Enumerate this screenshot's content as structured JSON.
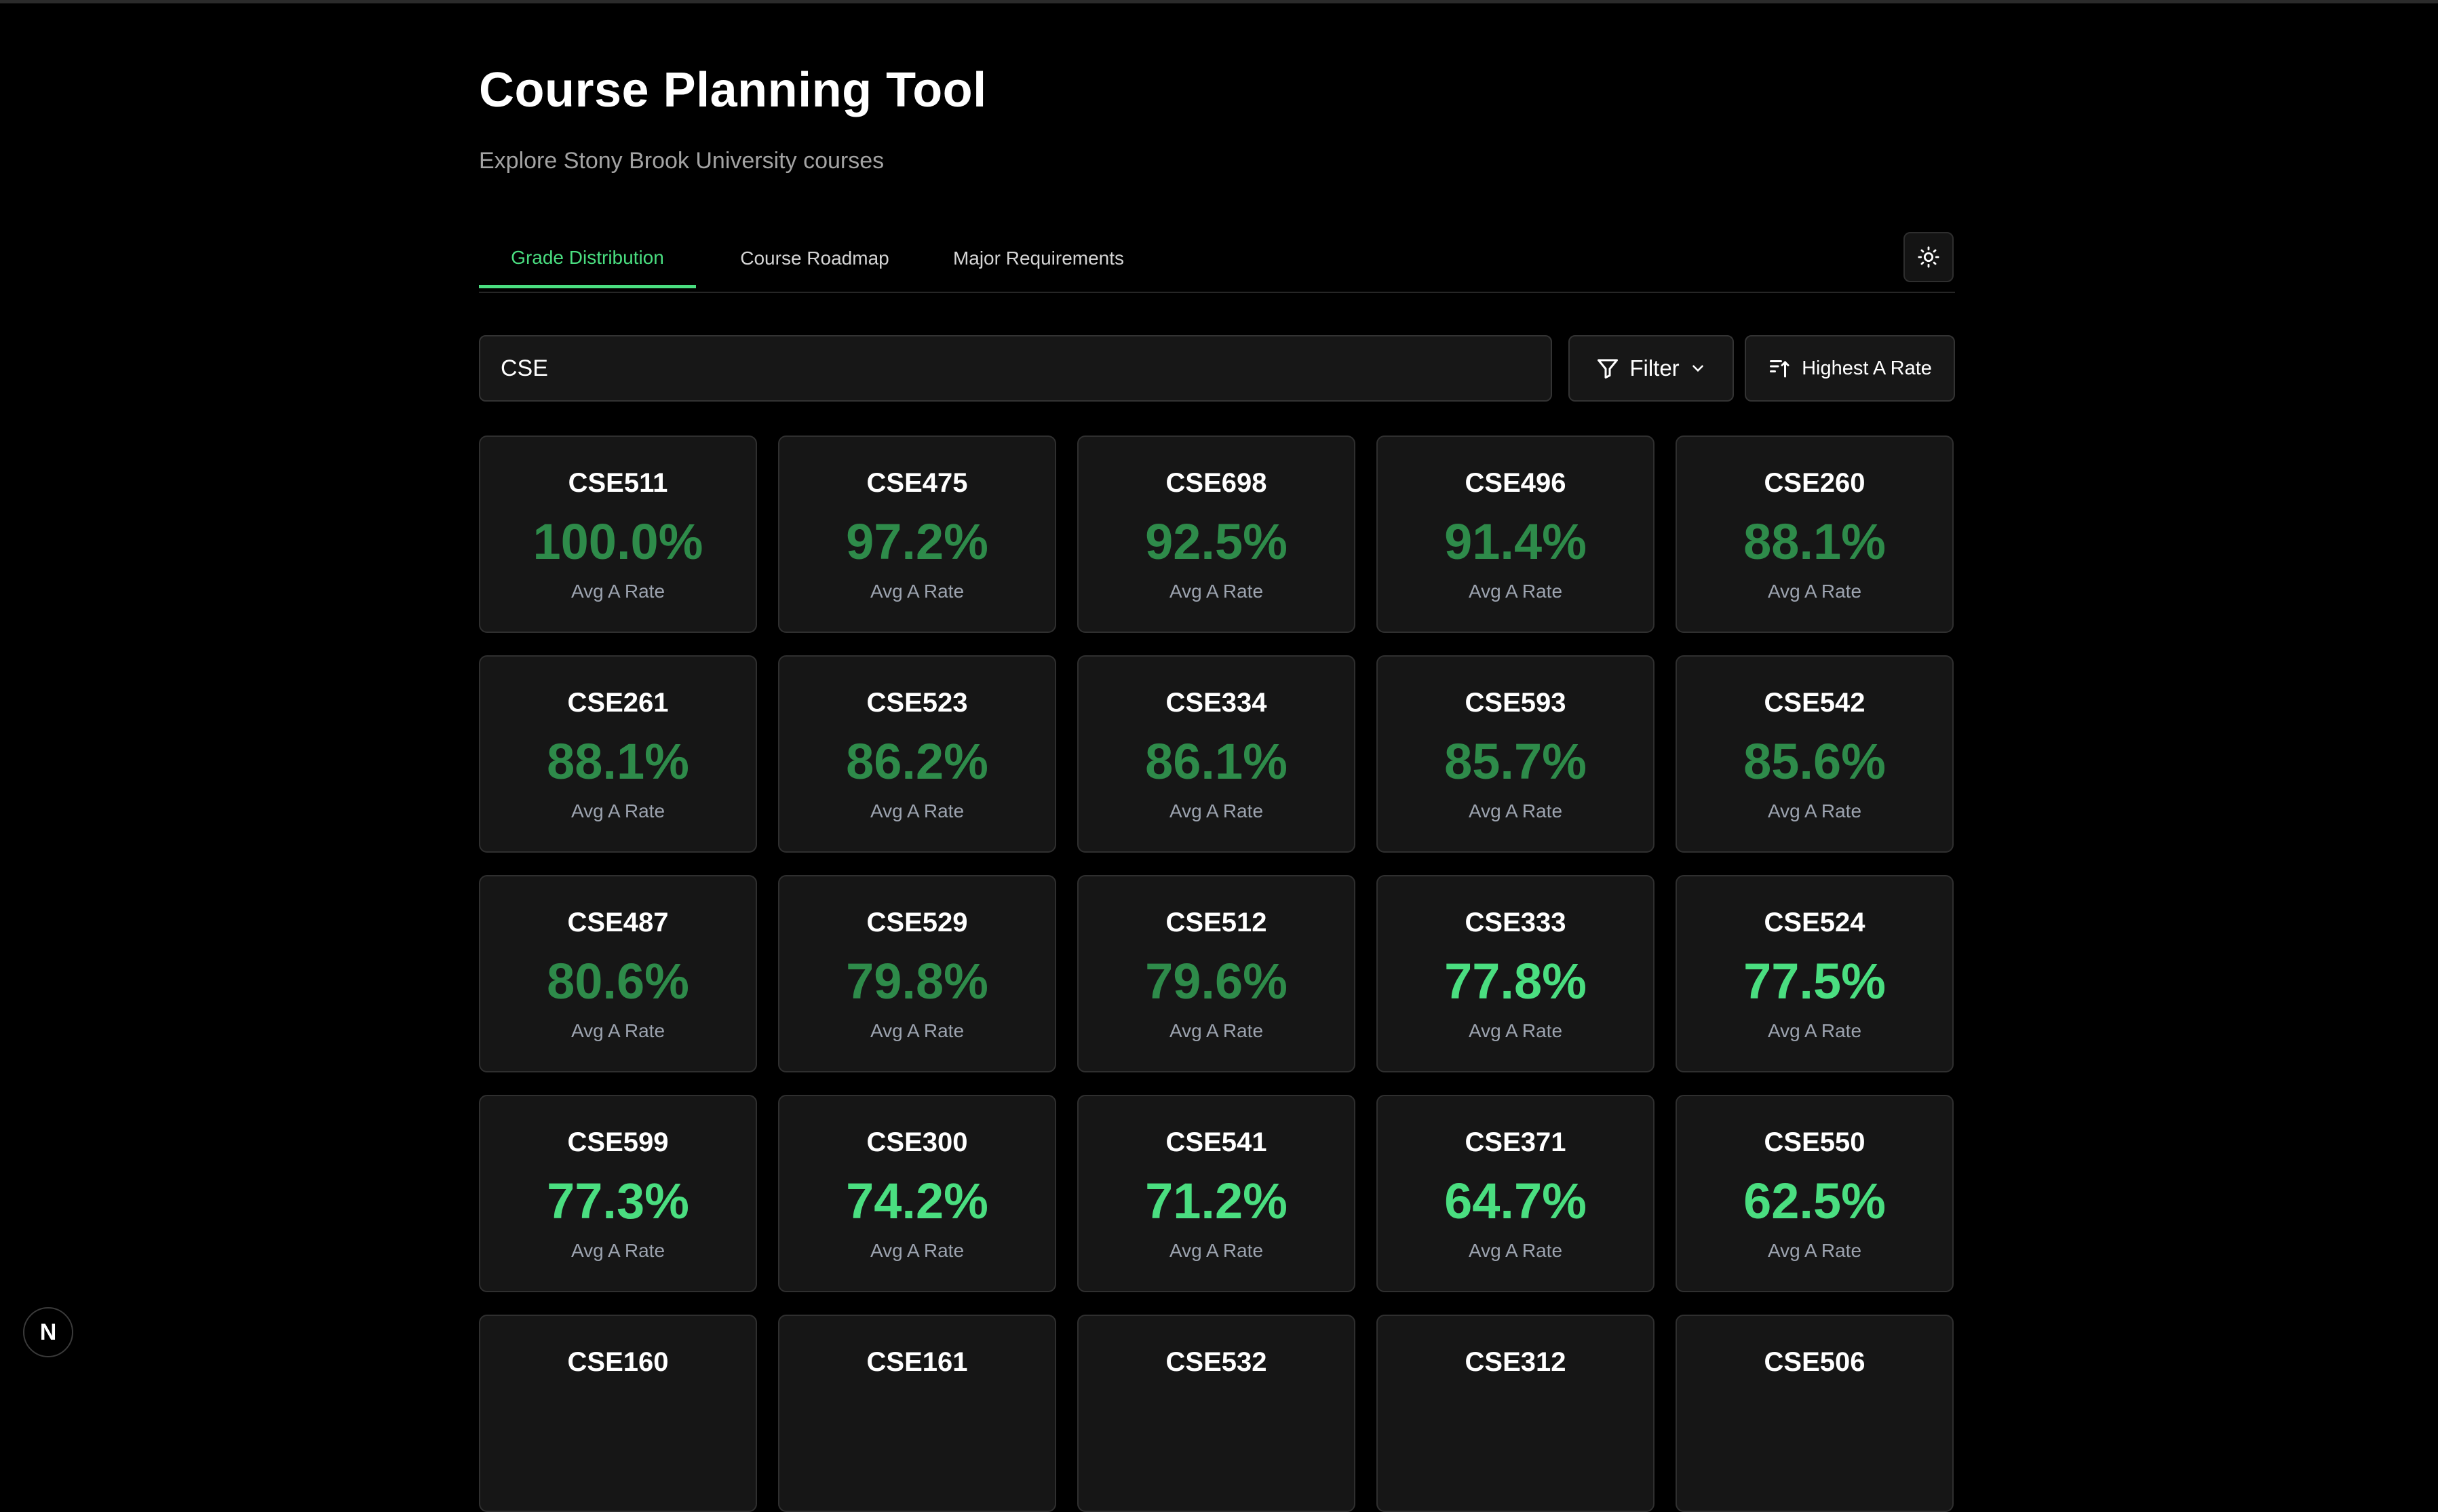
{
  "header": {
    "title": "Course Planning Tool",
    "subtitle": "Explore Stony Brook University courses"
  },
  "tabs": [
    {
      "label": "Grade Distribution",
      "active": true
    },
    {
      "label": "Course Roadmap",
      "active": false
    },
    {
      "label": "Major Requirements",
      "active": false
    }
  ],
  "toolbar": {
    "search_value": "CSE",
    "filter_label": "Filter",
    "sort_label": "Highest A Rate",
    "theme_icon": "sun-icon"
  },
  "colors": {
    "accent": "#4ade80",
    "rate_high": "#2e8b4a",
    "rate_low": "#4ade80"
  },
  "rate_label": "Avg A Rate",
  "courses": [
    {
      "code": "CSE511",
      "rate": "100.0%"
    },
    {
      "code": "CSE475",
      "rate": "97.2%"
    },
    {
      "code": "CSE698",
      "rate": "92.5%"
    },
    {
      "code": "CSE496",
      "rate": "91.4%"
    },
    {
      "code": "CSE260",
      "rate": "88.1%"
    },
    {
      "code": "CSE261",
      "rate": "88.1%"
    },
    {
      "code": "CSE523",
      "rate": "86.2%"
    },
    {
      "code": "CSE334",
      "rate": "86.1%"
    },
    {
      "code": "CSE593",
      "rate": "85.7%"
    },
    {
      "code": "CSE542",
      "rate": "85.6%"
    },
    {
      "code": "CSE487",
      "rate": "80.6%"
    },
    {
      "code": "CSE529",
      "rate": "79.8%"
    },
    {
      "code": "CSE512",
      "rate": "79.6%"
    },
    {
      "code": "CSE333",
      "rate": "77.8%"
    },
    {
      "code": "CSE524",
      "rate": "77.5%"
    },
    {
      "code": "CSE599",
      "rate": "77.3%"
    },
    {
      "code": "CSE300",
      "rate": "74.2%"
    },
    {
      "code": "CSE541",
      "rate": "71.2%"
    },
    {
      "code": "CSE371",
      "rate": "64.7%"
    },
    {
      "code": "CSE550",
      "rate": "62.5%"
    },
    {
      "code": "CSE160",
      "rate": ""
    },
    {
      "code": "CSE161",
      "rate": ""
    },
    {
      "code": "CSE532",
      "rate": ""
    },
    {
      "code": "CSE312",
      "rate": ""
    },
    {
      "code": "CSE506",
      "rate": ""
    }
  ],
  "framework_badge": "N"
}
